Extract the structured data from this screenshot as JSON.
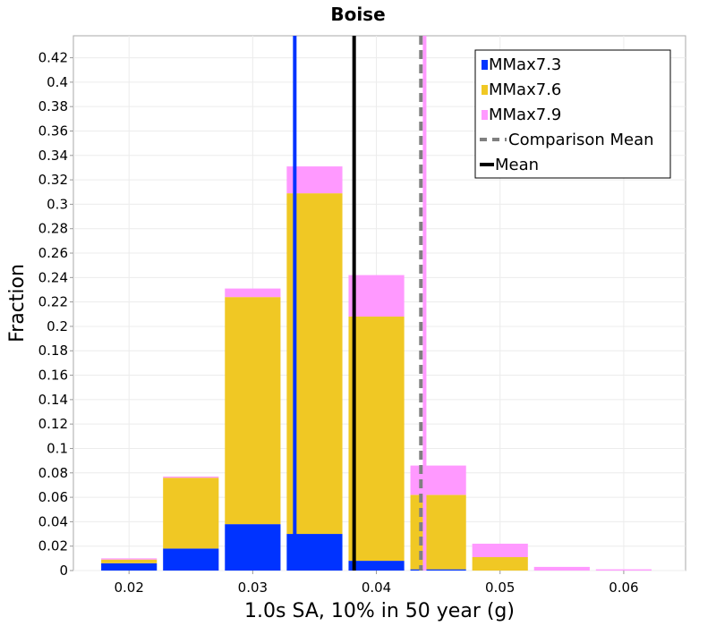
{
  "chart_data": {
    "type": "bar",
    "title": "Boise",
    "xlabel": "1.0s SA, 10% in 50 year (g)",
    "ylabel": "Fraction",
    "xlim": [
      0.0155,
      0.065
    ],
    "ylim": [
      0,
      0.438
    ],
    "bin_width": 0.005,
    "x": [
      0.02,
      0.025,
      0.03,
      0.035,
      0.04,
      0.045,
      0.05,
      0.055,
      0.06
    ],
    "series": [
      {
        "name": "MMax7.3",
        "color": "#0033ff",
        "values": [
          0.006,
          0.018,
          0.038,
          0.03,
          0.008,
          0.001,
          0.0,
          0.0,
          0.0
        ]
      },
      {
        "name": "MMax7.6",
        "color": "#f0c824",
        "values": [
          0.003,
          0.058,
          0.186,
          0.279,
          0.2,
          0.061,
          0.011,
          0.0,
          0.0
        ]
      },
      {
        "name": "MMax7.9",
        "color": "#ff99ff",
        "values": [
          0.001,
          0.001,
          0.007,
          0.022,
          0.034,
          0.024,
          0.011,
          0.003,
          0.001
        ]
      }
    ],
    "vertical_lines": [
      {
        "key": "mmax73_mean",
        "x": 0.0334,
        "color": "#0033ff",
        "style": "solid"
      },
      {
        "key": "mmax79_mean",
        "x": 0.0439,
        "color": "#ff99ff",
        "style": "solid"
      },
      {
        "key": "mean",
        "x": 0.0382,
        "color": "#000000",
        "style": "solid"
      },
      {
        "key": "comparison_mean",
        "x": 0.0436,
        "color": "#808080",
        "style": "dashed"
      }
    ],
    "xticks": [
      "0.02",
      "0.03",
      "0.04",
      "0.05",
      "0.06"
    ],
    "yticks": [
      "0",
      "0.02",
      "0.04",
      "0.06",
      "0.08",
      "0.1",
      "0.12",
      "0.14",
      "0.16",
      "0.18",
      "0.2",
      "0.22",
      "0.24",
      "0.26",
      "0.28",
      "0.3",
      "0.32",
      "0.34",
      "0.36",
      "0.38",
      "0.4",
      "0.42"
    ],
    "legend": {
      "position": "top-right",
      "entries": [
        {
          "label": "MMax7.3",
          "color": "#0033ff",
          "marker": "square"
        },
        {
          "label": "MMax7.6",
          "color": "#f0c824",
          "marker": "square"
        },
        {
          "label": "MMax7.9",
          "color": "#ff99ff",
          "marker": "square"
        },
        {
          "label": "Comparison Mean",
          "color": "#808080",
          "marker": "dashed-line"
        },
        {
          "label": "Mean",
          "color": "#000000",
          "marker": "line"
        }
      ]
    },
    "grid": true
  }
}
